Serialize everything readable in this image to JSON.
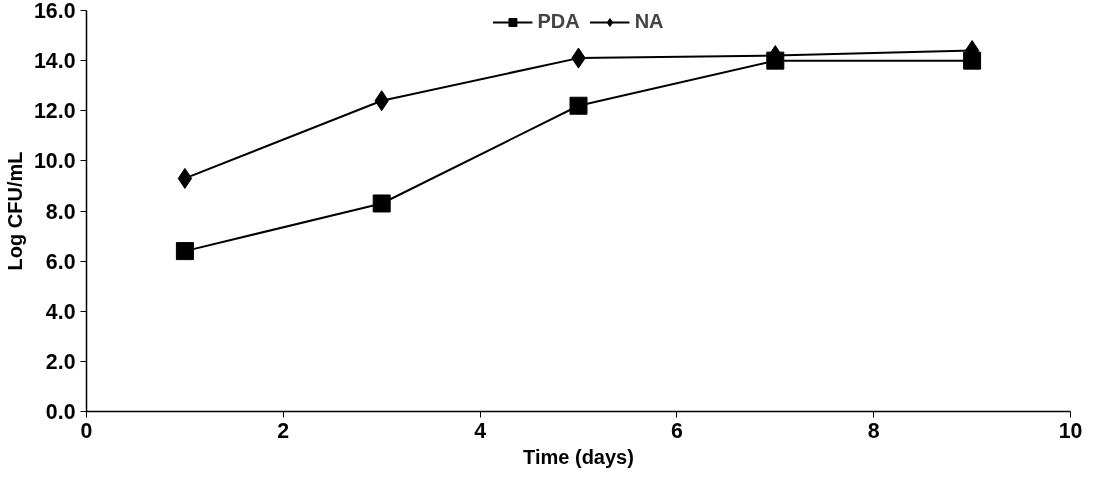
{
  "chart_data": {
    "type": "line",
    "xlabel": "Time (days)",
    "ylabel": "Log CFU/mL",
    "x": [
      1,
      3,
      5,
      7,
      9
    ],
    "series": [
      {
        "name": "PDA",
        "color": "#000000",
        "marker": "square",
        "values": [
          6.4,
          8.3,
          12.2,
          14.0,
          14.0
        ]
      },
      {
        "name": "NA",
        "color": "#000000",
        "marker": "diamond",
        "values": [
          9.3,
          12.4,
          14.1,
          14.2,
          14.4
        ]
      }
    ],
    "xlim": [
      0,
      10
    ],
    "xticks": [
      0,
      2,
      4,
      6,
      8,
      10
    ],
    "ylim": [
      0,
      16
    ],
    "yticks": [
      {
        "value": 0,
        "label": "0.0"
      },
      {
        "value": 2,
        "label": "2.0"
      },
      {
        "value": 4,
        "label": "4.0"
      },
      {
        "value": 6,
        "label": "6.0"
      },
      {
        "value": 8,
        "label": "8.0"
      },
      {
        "value": 10,
        "label": "10.0"
      },
      {
        "value": 12,
        "label": "12.0"
      },
      {
        "value": 14,
        "label": "14.0"
      },
      {
        "value": 16,
        "label": "16.0"
      }
    ],
    "grid": false,
    "legend": "top",
    "line_style": "solid"
  }
}
